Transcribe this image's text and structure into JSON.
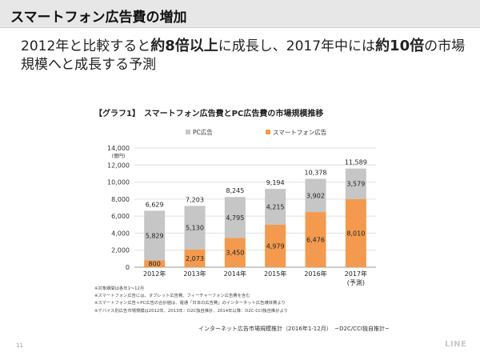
{
  "slide": {
    "title": "スマートフォン広告費の増加",
    "lead": {
      "p1": "2012年と比較すると",
      "b1": "約8倍以上",
      "p2": "に成長し、2017年中には",
      "b2": "約10倍",
      "p3": "の市場規模へと成長する予測"
    },
    "chart_title": "【グラフ1】　スマートフォン広告費とPC広告費の市場規模推移",
    "notes": [
      "※対象期間は各年1〜12月",
      "※スマートフォン広告には、タブレット広告費、フィーチャーフォン広告費を含む",
      "※スマートフォン広告＋PC広告の合計値は、電通「日本の広告費」のインターネット広告媒体費より",
      "※デバイス別広告市場規模は2012年、2013年：D2C独自推計、2014年以降：D2C-CCI独自推計より"
    ],
    "source": "インターネット広告市場規模推計（2016年1-12月）　~D2C/CCI独自推計~",
    "page_number": "11",
    "logo": "LINE"
  },
  "chart_data": {
    "type": "bar",
    "stacked": true,
    "unit_label": "(億円)",
    "categories": [
      "2012年",
      "2013年",
      "2014年",
      "2015年",
      "2016年",
      "2017年"
    ],
    "category_sublabels": [
      "",
      "",
      "",
      "",
      "",
      "(予測)"
    ],
    "ylim": [
      0,
      14000
    ],
    "yticks": [
      0,
      2000,
      4000,
      6000,
      8000,
      10000,
      12000,
      14000
    ],
    "ytick_labels": [
      "0",
      "2,000",
      "4,000",
      "6,000",
      "8,000",
      "10,000",
      "12,000",
      "14,000"
    ],
    "grid": true,
    "legend_position": "top-left",
    "series": [
      {
        "name": "スマートフォン広告",
        "color": "#f39a4e",
        "values": [
          800,
          2073,
          3450,
          4979,
          6476,
          8010
        ],
        "labels": [
          "800",
          "2,073",
          "3,450",
          "4,979",
          "6,476",
          "8,010"
        ]
      },
      {
        "name": "PC広告",
        "color": "#c6c6c6",
        "values": [
          5829,
          5130,
          4795,
          4215,
          3902,
          3579
        ],
        "labels": [
          "5,829",
          "5,130",
          "4,795",
          "4,215",
          "3,902",
          "3,579"
        ]
      }
    ],
    "totals": [
      6629,
      7203,
      8245,
      9194,
      10378,
      11589
    ],
    "total_labels": [
      "6,629",
      "7,203",
      "8,245",
      "9,194",
      "10,378",
      "11,589"
    ]
  }
}
